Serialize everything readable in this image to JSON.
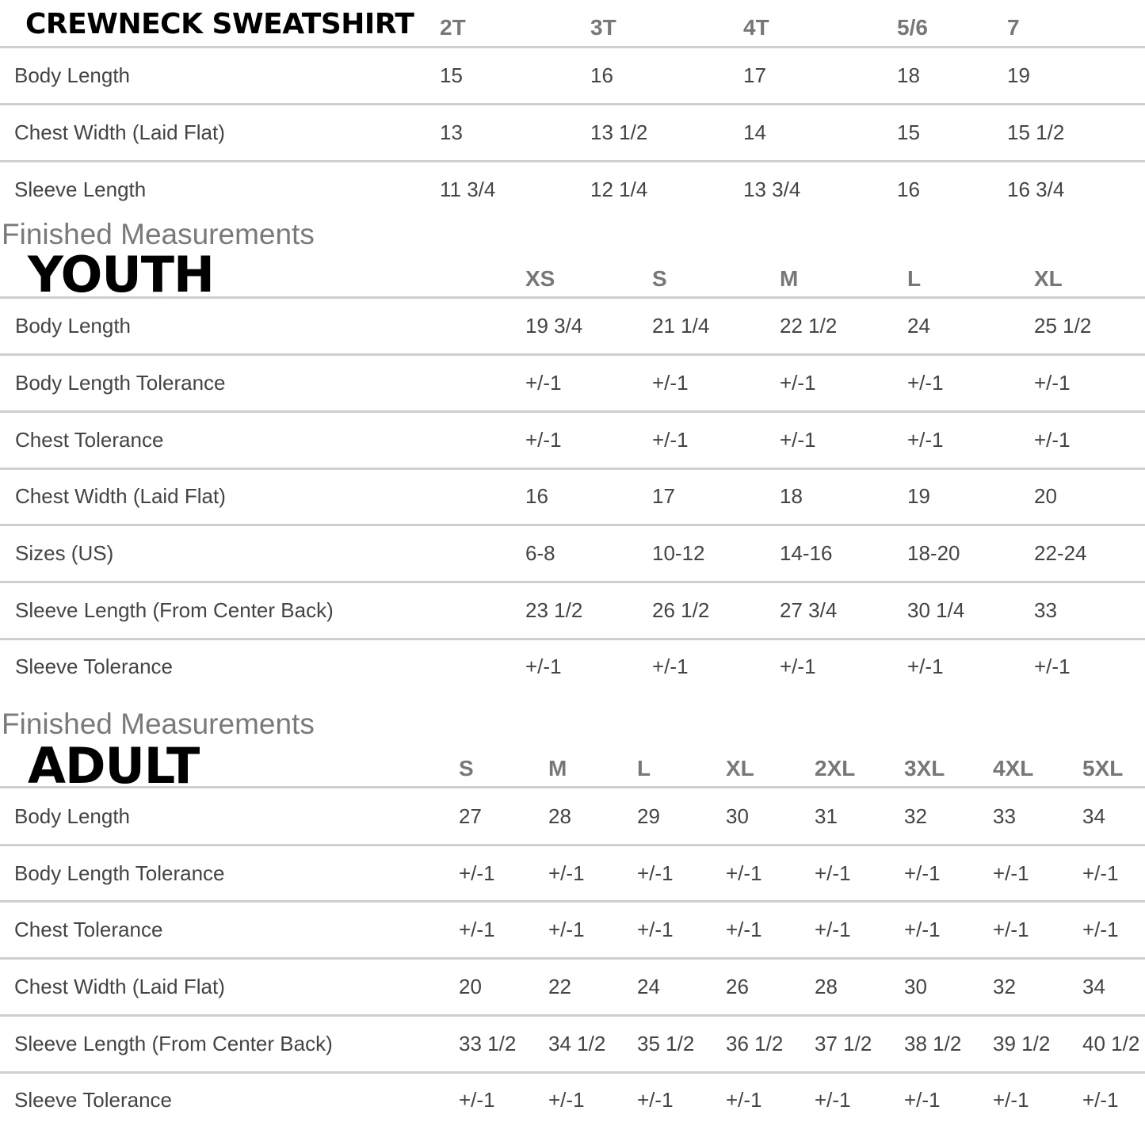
{
  "crewneck": {
    "title": "CREWNECK SWEATSHIRT",
    "columns": [
      "2T",
      "3T",
      "4T",
      "5/6",
      "7"
    ],
    "rows": [
      {
        "label": "Body Length",
        "values": [
          "15",
          "16",
          "17",
          "18",
          "19"
        ]
      },
      {
        "label": "Chest Width (Laid Flat)",
        "values": [
          "13",
          "13 1/2",
          "14",
          "15",
          "15 1/2"
        ]
      },
      {
        "label": "Sleeve Length",
        "values": [
          "11 3/4",
          "12 1/4",
          "13 3/4",
          "16",
          "16 3/4"
        ]
      }
    ]
  },
  "youth": {
    "subtitle": "Finished Measurements",
    "title": "YOUTH",
    "columns": [
      "XS",
      "S",
      "M",
      "L",
      "XL"
    ],
    "rows": [
      {
        "label": "Body Length",
        "values": [
          "19 3/4",
          "21 1/4",
          "22 1/2",
          "24",
          "25 1/2"
        ]
      },
      {
        "label": "Body Length Tolerance",
        "values": [
          "+/-1",
          "+/-1",
          "+/-1",
          "+/-1",
          "+/-1"
        ]
      },
      {
        "label": "Chest Tolerance",
        "values": [
          "+/-1",
          "+/-1",
          "+/-1",
          "+/-1",
          "+/-1"
        ]
      },
      {
        "label": "Chest Width (Laid Flat)",
        "values": [
          "16",
          "17",
          "18",
          "19",
          "20"
        ]
      },
      {
        "label": "Sizes (US)",
        "values": [
          "6-8",
          "10-12",
          "14-16",
          "18-20",
          "22-24"
        ]
      },
      {
        "label": "Sleeve Length (From Center Back)",
        "values": [
          "23 1/2",
          "26 1/2",
          "27 3/4",
          "30 1/4",
          "33"
        ]
      },
      {
        "label": "Sleeve Tolerance",
        "values": [
          "+/-1",
          "+/-1",
          "+/-1",
          "+/-1",
          "+/-1"
        ]
      }
    ]
  },
  "adult": {
    "subtitle": "Finished Measurements",
    "title": "ADULT",
    "columns": [
      "S",
      "M",
      "L",
      "XL",
      "2XL",
      "3XL",
      "4XL",
      "5XL"
    ],
    "rows": [
      {
        "label": "Body Length",
        "values": [
          "27",
          "28",
          "29",
          "30",
          "31",
          "32",
          "33",
          "34"
        ]
      },
      {
        "label": "Body Length Tolerance",
        "values": [
          "+/-1",
          "+/-1",
          "+/-1",
          "+/-1",
          "+/-1",
          "+/-1",
          "+/-1",
          "+/-1"
        ]
      },
      {
        "label": "Chest Tolerance",
        "values": [
          "+/-1",
          "+/-1",
          "+/-1",
          "+/-1",
          "+/-1",
          "+/-1",
          "+/-1",
          "+/-1"
        ]
      },
      {
        "label": "Chest Width (Laid Flat)",
        "values": [
          "20",
          "22",
          "24",
          "26",
          "28",
          "30",
          "32",
          "34"
        ]
      },
      {
        "label": "Sleeve Length (From Center Back)",
        "values": [
          "33 1/2",
          "34 1/2",
          "35 1/2",
          "36 1/2",
          "37 1/2",
          "38 1/2",
          "39 1/2",
          "40 1/2"
        ]
      },
      {
        "label": "Sleeve Tolerance",
        "values": [
          "+/-1",
          "+/-1",
          "+/-1",
          "+/-1",
          "+/-1",
          "+/-1",
          "+/-1",
          "+/-1"
        ]
      }
    ]
  }
}
